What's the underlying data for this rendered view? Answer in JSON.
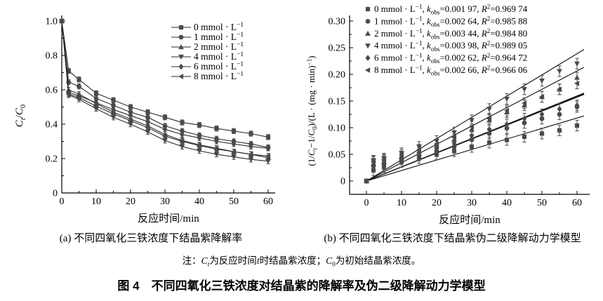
{
  "figure": {
    "title": "图 4　不同四氧化三铁浓度对结晶紫的降解率及伪二级降解动力学模型",
    "note_segments": [
      {
        "t": "注："
      },
      {
        "t": "C",
        "i": 1
      },
      {
        "t": "t",
        "sub": 1,
        "i": 1
      },
      {
        "t": "为反应时间"
      },
      {
        "t": "t",
        "i": 1
      },
      {
        "t": "时结晶紫浓度；"
      },
      {
        "t": "C",
        "i": 1
      },
      {
        "t": "0",
        "sub": 1
      },
      {
        "t": "为初始结晶紫浓度。"
      }
    ],
    "colors": {
      "marker": "#4a4a4a",
      "line": "#2b2b2b",
      "fit_line": "#161616",
      "axis": "#000000",
      "text": "#000000",
      "background": "#ffffff"
    }
  },
  "chart_data": [
    {
      "id": "a",
      "type": "line",
      "title": "(a) 不同四氧化三铁浓度下结晶紫降解率",
      "xlabel": "反应时间/min",
      "ylabel": "Ct/C0",
      "ylabel_segments": [
        {
          "t": "C",
          "i": 1
        },
        {
          "t": "t",
          "sub": 1,
          "i": 1
        },
        {
          "t": "/"
        },
        {
          "t": "C",
          "i": 1
        },
        {
          "t": "0",
          "sub": 1
        }
      ],
      "xlim": [
        0,
        60
      ],
      "ylim": [
        0,
        1.0
      ],
      "xticks": [
        0,
        10,
        20,
        30,
        40,
        50,
        60
      ],
      "xtick_labels": [
        "0",
        "10",
        "20",
        "30",
        "40",
        "50",
        "60"
      ],
      "yticks": [
        0,
        0.2,
        0.4,
        0.6,
        0.8,
        1.0
      ],
      "ytick_labels": [
        "0",
        "0.2",
        "0.4",
        "0.6",
        "0.8",
        "1.0"
      ],
      "grid": false,
      "legend_position": "top-right",
      "x": [
        0,
        2,
        5,
        10,
        15,
        20,
        25,
        30,
        35,
        40,
        45,
        50,
        55,
        60
      ],
      "yerr": 0.015,
      "series": [
        {
          "label": "0 mmol · L⁻¹",
          "marker": "square",
          "values": [
            1.0,
            0.71,
            0.66,
            0.58,
            0.54,
            0.5,
            0.47,
            0.44,
            0.41,
            0.395,
            0.375,
            0.36,
            0.345,
            0.325
          ]
        },
        {
          "label": "1 mmol · L⁻¹",
          "marker": "circle",
          "values": [
            1.0,
            0.645,
            0.62,
            0.55,
            0.51,
            0.47,
            0.44,
            0.39,
            0.36,
            0.335,
            0.315,
            0.3,
            0.285,
            0.265
          ]
        },
        {
          "label": "2 mmol · L⁻¹",
          "marker": "triangle-up",
          "values": [
            1.0,
            0.6,
            0.575,
            0.52,
            0.47,
            0.43,
            0.39,
            0.34,
            0.305,
            0.28,
            0.26,
            0.24,
            0.225,
            0.205
          ]
        },
        {
          "label": "4 mmol · L⁻¹",
          "marker": "triangle-down",
          "values": [
            1.0,
            0.57,
            0.545,
            0.49,
            0.44,
            0.4,
            0.355,
            0.305,
            0.27,
            0.245,
            0.225,
            0.21,
            0.195,
            0.185
          ]
        },
        {
          "label": "6 mmol · L⁻¹",
          "marker": "diamond",
          "values": [
            1.0,
            0.585,
            0.565,
            0.525,
            0.485,
            0.45,
            0.415,
            0.37,
            0.34,
            0.32,
            0.3,
            0.285,
            0.27,
            0.26
          ]
        },
        {
          "label": "8 mmol · L⁻¹",
          "marker": "triangle-left",
          "values": [
            1.0,
            0.575,
            0.555,
            0.505,
            0.46,
            0.42,
            0.38,
            0.33,
            0.3,
            0.275,
            0.255,
            0.24,
            0.225,
            0.215
          ]
        }
      ]
    },
    {
      "id": "b",
      "type": "scatter",
      "title": "(b) 不同四氧化三铁浓度下结晶紫伪二级降解动力学模型",
      "xlabel": "反应时间/min",
      "ylabel": "(1/Ct−1/C0)/(L·(mg·min)⁻¹)",
      "ylabel_segments": [
        {
          "t": "(1/"
        },
        {
          "t": "C",
          "i": 1
        },
        {
          "t": "t",
          "sub": 1,
          "i": 1
        },
        {
          "t": "−1/"
        },
        {
          "t": "C",
          "i": 1
        },
        {
          "t": "0",
          "sub": 1
        },
        {
          "t": ")/(L · (mg · min)"
        },
        {
          "t": "−1",
          "sup": 1
        },
        {
          "t": ")"
        }
      ],
      "xlim": [
        0,
        60
      ],
      "ylim": [
        0,
        0.3
      ],
      "xticks": [
        0,
        10,
        20,
        30,
        40,
        50,
        60
      ],
      "xtick_labels": [
        "0",
        "10",
        "20",
        "30",
        "40",
        "50",
        "60"
      ],
      "yticks": [
        0,
        0.05,
        0.1,
        0.15,
        0.2,
        0.25,
        0.3
      ],
      "ytick_labels": [
        "0",
        "0.05",
        "0.10",
        "0.15",
        "0.20",
        "0.25",
        "0.30"
      ],
      "grid": false,
      "legend_position": "top-left",
      "fit_lines_through_origin": true,
      "x": [
        0,
        2,
        5,
        10,
        15,
        20,
        25,
        30,
        35,
        40,
        45,
        50,
        55,
        60
      ],
      "yerr": 0.01,
      "series": [
        {
          "label": "0 mmol · L⁻¹",
          "marker": "square",
          "k_obs": "0.001 97",
          "R2": "0.969 74",
          "slope": 0.00197,
          "values": [
            0,
            0.02,
            0.026,
            0.036,
            0.043,
            0.05,
            0.056,
            0.064,
            0.072,
            0.077,
            0.083,
            0.089,
            0.095,
            0.104
          ]
        },
        {
          "label": "1 mmol · L⁻¹",
          "marker": "circle",
          "k_obs": "0.002 64",
          "R2": "0.985 88",
          "slope": 0.00264,
          "values": [
            0,
            0.028,
            0.031,
            0.041,
            0.048,
            0.056,
            0.064,
            0.078,
            0.089,
            0.099,
            0.109,
            0.117,
            0.125,
            0.139
          ]
        },
        {
          "label": "2 mmol · L⁻¹",
          "marker": "triangle-up",
          "k_obs": "0.003 44",
          "R2": "0.984 80",
          "slope": 0.00344,
          "values": [
            0,
            0.033,
            0.037,
            0.046,
            0.056,
            0.066,
            0.078,
            0.097,
            0.114,
            0.129,
            0.142,
            0.158,
            0.172,
            0.194
          ]
        },
        {
          "label": "4 mmol · L⁻¹",
          "marker": "triangle-down",
          "k_obs": "0.003 98",
          "R2": "0.989 05",
          "slope": 0.00398,
          "values": [
            0,
            0.038,
            0.042,
            0.052,
            0.064,
            0.075,
            0.091,
            0.114,
            0.135,
            0.154,
            0.172,
            0.188,
            0.206,
            0.22
          ]
        },
        {
          "label": "6 mmol · L⁻¹",
          "marker": "diamond",
          "k_obs": "0.002 62",
          "R2": "0.964 72",
          "slope": 0.00262,
          "values": [
            0,
            0.036,
            0.039,
            0.045,
            0.053,
            0.061,
            0.071,
            0.085,
            0.097,
            0.106,
            0.117,
            0.125,
            0.135,
            0.142
          ]
        },
        {
          "label": "8 mmol · L⁻¹",
          "marker": "triangle-left",
          "k_obs": "0.002 66",
          "R2": "0.966 06",
          "slope": 0.00266,
          "values": [
            0,
            0.037,
            0.04,
            0.049,
            0.059,
            0.069,
            0.082,
            0.102,
            0.117,
            0.132,
            0.146,
            0.158,
            0.172,
            0.183
          ]
        }
      ]
    }
  ]
}
